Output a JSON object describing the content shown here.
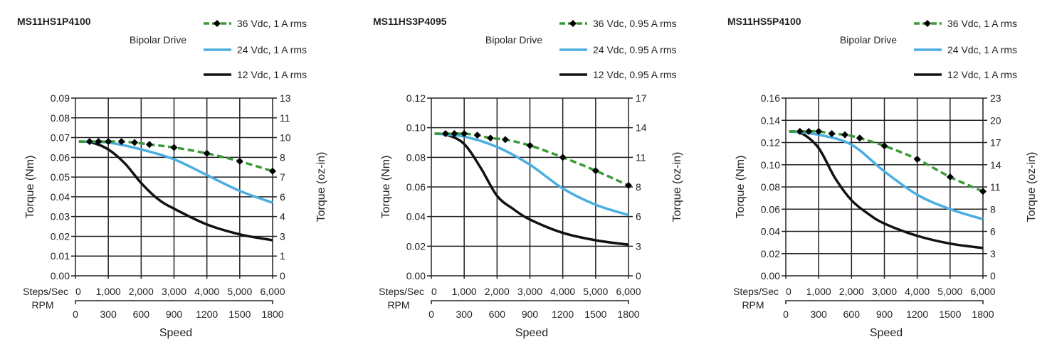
{
  "chart_data": [
    {
      "type": "line",
      "title": "MS11HS1P4100",
      "subtitle": "Bipolar Drive",
      "xlabel": "Speed",
      "x_axis_label_primary": "Steps/Sec",
      "x_axis_label_secondary": "RPM",
      "ylabel": "Torque (Nm)",
      "ylabel_right": "Torque (oz-in)",
      "xlim": [
        0,
        6000
      ],
      "ylim": [
        0,
        0.09
      ],
      "x_ticks": [
        "0",
        "1,000",
        "2,000",
        "3,000",
        "4,000",
        "5,000",
        "6,000"
      ],
      "rpm_ticks": [
        "0",
        "300",
        "600",
        "900",
        "1200",
        "1500",
        "1800"
      ],
      "y_ticks": [
        "0.00",
        "0.01",
        "0.02",
        "0.03",
        "0.04",
        "0.05",
        "0.06",
        "0.07",
        "0.08",
        "0.09"
      ],
      "y_ticks_right": [
        "0",
        "1",
        "3",
        "4",
        "6",
        "7",
        "8",
        "10",
        "11",
        "13"
      ],
      "grid": true,
      "legend_position": "top-right",
      "series": [
        {
          "name": "36 Vdc, 1 A rms",
          "color": "#3a9a3a",
          "style": "dashed-markers",
          "x": [
            100,
            430,
            700,
            1000,
            1400,
            1800,
            2250,
            3000,
            4000,
            5000,
            6000
          ],
          "y": [
            0.068,
            0.068,
            0.068,
            0.068,
            0.068,
            0.0675,
            0.0665,
            0.065,
            0.062,
            0.058,
            0.053
          ]
        },
        {
          "name": "24 Vdc, 1 A rms",
          "color": "#4aaee0",
          "style": "solid",
          "x": [
            100,
            1000,
            2000,
            3000,
            4000,
            5000,
            6000
          ],
          "y": [
            0.068,
            0.0675,
            0.064,
            0.059,
            0.051,
            0.043,
            0.037
          ]
        },
        {
          "name": "12 Vdc, 1 A rms",
          "color": "#111111",
          "style": "solid",
          "x": [
            100,
            500,
            1000,
            1500,
            2000,
            2500,
            3000,
            4000,
            5000,
            6000
          ],
          "y": [
            0.068,
            0.0675,
            0.064,
            0.057,
            0.047,
            0.039,
            0.034,
            0.026,
            0.021,
            0.018
          ]
        }
      ]
    },
    {
      "type": "line",
      "title": "MS11HS3P4095",
      "subtitle": "Bipolar Drive",
      "xlabel": "Speed",
      "x_axis_label_primary": "Steps/Sec",
      "x_axis_label_secondary": "RPM",
      "ylabel": "Torque (Nm)",
      "ylabel_right": "Torque (oz-in)",
      "xlim": [
        0,
        6000
      ],
      "ylim": [
        0,
        0.12
      ],
      "x_ticks": [
        "0",
        "1,000",
        "2,000",
        "3,000",
        "4,000",
        "5,000",
        "6,000"
      ],
      "rpm_ticks": [
        "0",
        "300",
        "600",
        "900",
        "1200",
        "1500",
        "1800"
      ],
      "y_ticks": [
        "0.00",
        "0.02",
        "0.04",
        "0.06",
        "0.08",
        "0.10",
        "0.12"
      ],
      "y_ticks_right": [
        "0",
        "3",
        "6",
        "8",
        "11",
        "14",
        "17"
      ],
      "grid": true,
      "legend_position": "top-right",
      "series": [
        {
          "name": "36 Vdc, 0.95 A rms",
          "color": "#3a9a3a",
          "style": "dashed-markers",
          "x": [
            100,
            430,
            700,
            1000,
            1400,
            1800,
            2250,
            3000,
            4000,
            5000,
            6000
          ],
          "y": [
            0.096,
            0.096,
            0.096,
            0.096,
            0.095,
            0.093,
            0.092,
            0.088,
            0.08,
            0.071,
            0.061
          ]
        },
        {
          "name": "24 Vdc, 0.95 A rms",
          "color": "#4aaee0",
          "style": "solid",
          "x": [
            100,
            1000,
            2000,
            3000,
            4000,
            5000,
            6000
          ],
          "y": [
            0.096,
            0.094,
            0.087,
            0.075,
            0.059,
            0.048,
            0.041
          ]
        },
        {
          "name": "12 Vdc, 0.95 A rms",
          "color": "#111111",
          "style": "solid",
          "x": [
            100,
            500,
            1000,
            1500,
            2000,
            2500,
            3000,
            4000,
            5000,
            6000
          ],
          "y": [
            0.096,
            0.095,
            0.089,
            0.073,
            0.054,
            0.045,
            0.038,
            0.029,
            0.024,
            0.021
          ]
        }
      ]
    },
    {
      "type": "line",
      "title": "MS11HS5P4100",
      "subtitle": "Bipolar Drive",
      "xlabel": "Speed",
      "x_axis_label_primary": "Steps/Sec",
      "x_axis_label_secondary": "RPM",
      "ylabel": "Torque (Nm)",
      "ylabel_right": "Torque (oz-in)",
      "xlim": [
        0,
        6000
      ],
      "ylim": [
        0,
        0.16
      ],
      "x_ticks": [
        "0",
        "1,000",
        "2,000",
        "3,000",
        "4,000",
        "5,000",
        "6,000"
      ],
      "rpm_ticks": [
        "0",
        "300",
        "600",
        "900",
        "1200",
        "1500",
        "1800"
      ],
      "y_ticks": [
        "0.00",
        "0.02",
        "0.04",
        "0.06",
        "0.08",
        "0.10",
        "0.12",
        "0.14",
        "0.16"
      ],
      "y_ticks_right": [
        "0",
        "3",
        "6",
        "8",
        "11",
        "14",
        "17",
        "20",
        "23"
      ],
      "grid": true,
      "legend_position": "top-right",
      "series": [
        {
          "name": "36 Vdc, 1 A rms",
          "color": "#3a9a3a",
          "style": "dashed-markers",
          "x": [
            100,
            430,
            700,
            1000,
            1400,
            1800,
            2250,
            3000,
            4000,
            5000,
            6000
          ],
          "y": [
            0.13,
            0.13,
            0.13,
            0.13,
            0.128,
            0.127,
            0.124,
            0.117,
            0.105,
            0.089,
            0.076
          ]
        },
        {
          "name": "24 Vdc, 1 A rms",
          "color": "#4aaee0",
          "style": "solid",
          "x": [
            100,
            1000,
            2000,
            3000,
            4000,
            5000,
            6000
          ],
          "y": [
            0.13,
            0.127,
            0.118,
            0.094,
            0.073,
            0.06,
            0.051
          ]
        },
        {
          "name": "12 Vdc, 1 A rms",
          "color": "#111111",
          "style": "solid",
          "x": [
            100,
            500,
            1000,
            1500,
            2000,
            2500,
            3000,
            4000,
            5000,
            6000
          ],
          "y": [
            0.13,
            0.128,
            0.115,
            0.088,
            0.068,
            0.056,
            0.047,
            0.036,
            0.029,
            0.025
          ]
        }
      ]
    }
  ]
}
